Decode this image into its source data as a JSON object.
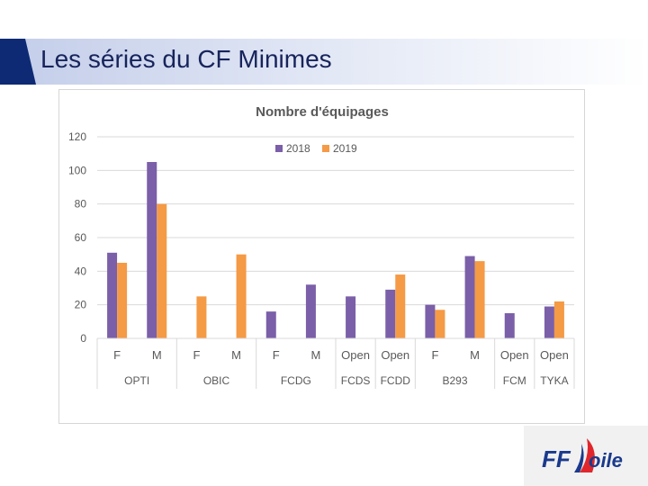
{
  "header": {
    "title": "Les séries du CF Minimes"
  },
  "chart_data": {
    "type": "bar",
    "title": "Nombre d'équipages",
    "ylim": [
      0,
      120
    ],
    "yticks": [
      "0",
      "20",
      "40",
      "60",
      "80",
      "100",
      "120"
    ],
    "grid": true,
    "legend_position": "top-center",
    "categories": [
      "F",
      "M",
      "F",
      "M",
      "F",
      "M",
      "Open",
      "Open",
      "F",
      "M",
      "Open",
      "Open"
    ],
    "groups": [
      {
        "label": "OPTI",
        "count": 2
      },
      {
        "label": "OBIC",
        "count": 2
      },
      {
        "label": "FCDG",
        "count": 2
      },
      {
        "label": "FCDS",
        "count": 1
      },
      {
        "label": "FCDD",
        "count": 1
      },
      {
        "label": "B293",
        "count": 2
      },
      {
        "label": "FCM",
        "count": 1
      },
      {
        "label": "TYKA",
        "count": 1
      }
    ],
    "series": [
      {
        "name": "2018",
        "color": "#7b5fa8",
        "values": [
          51,
          105,
          null,
          null,
          16,
          32,
          25,
          29,
          20,
          49,
          15,
          19
        ]
      },
      {
        "name": "2019",
        "color": "#f59a45",
        "values": [
          45,
          80,
          25,
          50,
          null,
          null,
          null,
          38,
          17,
          46,
          null,
          22
        ]
      }
    ]
  },
  "logo": {
    "text_ff": "FF",
    "text_voile": "Voile",
    "color_primary": "#1b3a8c",
    "color_accent": "#e0262c"
  }
}
